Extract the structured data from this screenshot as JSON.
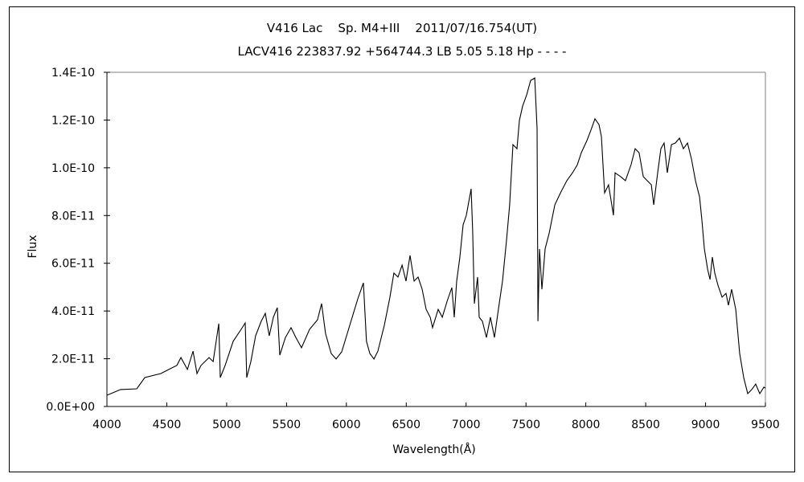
{
  "chart_data": {
    "type": "line",
    "title": "V416 Lac    Sp. M4+III    2011/07/16.754(UT)",
    "subtitle": "LACV416 223837.92 +564744.3 LB 5.05 5.18 Hp - - - -",
    "xlabel": "Wavelength(Å)",
    "ylabel": "Flux",
    "xlim": [
      4000,
      9500
    ],
    "ylim": [
      0,
      1.4e-10
    ],
    "x_ticks": [
      "4000",
      "4500",
      "5000",
      "5500",
      "6000",
      "6500",
      "7000",
      "7500",
      "8000",
      "8500",
      "9000",
      "9500"
    ],
    "y_ticks": [
      "0.0E+00",
      "2.0E-11",
      "4.0E-11",
      "6.0E-11",
      "8.0E-11",
      "1.0E-10",
      "1.2E-10",
      "1.4E-10"
    ],
    "grid": false,
    "line_color": "#000000",
    "series": [
      {
        "x": [
          4000,
          4114,
          4249,
          4316,
          4450,
          4517,
          4584,
          4618,
          4672,
          4719,
          4752,
          4786,
          4853,
          4887,
          4934,
          4947,
          4987,
          5054,
          5121,
          5155,
          5168,
          5202,
          5242,
          5289,
          5323,
          5356,
          5390,
          5423,
          5444,
          5491,
          5538,
          5578,
          5625,
          5692,
          5759,
          5793,
          5826,
          5873,
          5914,
          5961,
          6028,
          6095,
          6142,
          6168,
          6196,
          6230,
          6263,
          6317,
          6364,
          6397,
          6431,
          6465,
          6498,
          6532,
          6566,
          6599,
          6633,
          6666,
          6700,
          6720,
          6767,
          6801,
          6841,
          6881,
          6901,
          6921,
          6948,
          6975,
          7002,
          7042,
          7055,
          7069,
          7096,
          7109,
          7136,
          7170,
          7203,
          7237,
          7270,
          7304,
          7337,
          7364,
          7391,
          7425,
          7445,
          7472,
          7506,
          7539,
          7573,
          7593,
          7600,
          7613,
          7633,
          7660,
          7694,
          7741,
          7788,
          7841,
          7889,
          7929,
          7962,
          8009,
          8043,
          8076,
          8110,
          8130,
          8157,
          8190,
          8231,
          8244,
          8291,
          8331,
          8378,
          8412,
          8445,
          8480,
          8513,
          8547,
          8567,
          8600,
          8627,
          8654,
          8681,
          8715,
          8748,
          8782,
          8815,
          8849,
          8883,
          8916,
          8950,
          8970,
          8990,
          9017,
          9037,
          9057,
          9077,
          9104,
          9138,
          9171,
          9191,
          9218,
          9252,
          9285,
          9319,
          9352,
          9386,
          9419,
          9453,
          9487,
          9500
        ],
        "y": [
          4.7e-12,
          7.1e-12,
          7.4e-12,
          1.21e-11,
          1.38e-11,
          1.55e-11,
          1.72e-11,
          2.05e-11,
          1.55e-11,
          2.32e-11,
          1.38e-11,
          1.72e-11,
          2.05e-11,
          1.88e-11,
          3.47e-11,
          1.21e-11,
          1.72e-11,
          2.73e-11,
          3.23e-11,
          3.5e-11,
          1.21e-11,
          1.88e-11,
          2.96e-11,
          3.57e-11,
          3.9e-11,
          2.96e-11,
          3.74e-11,
          4.14e-11,
          2.15e-11,
          2.89e-11,
          3.3e-11,
          2.89e-11,
          2.46e-11,
          3.23e-11,
          3.63e-11,
          4.31e-11,
          3.06e-11,
          2.22e-11,
          1.99e-11,
          2.29e-11,
          3.4e-11,
          4.51e-11,
          5.18e-11,
          2.73e-11,
          2.22e-11,
          1.99e-11,
          2.32e-11,
          3.4e-11,
          4.58e-11,
          5.59e-11,
          5.42e-11,
          5.92e-11,
          5.25e-11,
          6.33e-11,
          5.25e-11,
          5.42e-11,
          4.91e-11,
          4.07e-11,
          3.74e-11,
          3.3e-11,
          4.07e-11,
          3.74e-11,
          4.41e-11,
          4.98e-11,
          3.74e-11,
          5.25e-11,
          6.26e-11,
          7.61e-11,
          8.01e-11,
          9.12e-11,
          7.34e-11,
          4.31e-11,
          5.42e-11,
          3.74e-11,
          3.57e-11,
          2.89e-11,
          3.74e-11,
          2.89e-11,
          4.07e-11,
          5.25e-11,
          6.93e-11,
          8.45e-11,
          1.097e-10,
          1.08e-10,
          1.198e-10,
          1.258e-10,
          1.306e-10,
          1.366e-10,
          1.376e-10,
          1.164e-10,
          3.57e-11,
          6.6e-11,
          4.91e-11,
          6.6e-11,
          7.27e-11,
          8.45e-11,
          8.95e-11,
          9.46e-11,
          9.79e-11,
          1.013e-10,
          1.063e-10,
          1.114e-10,
          1.158e-10,
          1.205e-10,
          1.181e-10,
          1.131e-10,
          8.95e-11,
          9.29e-11,
          8.01e-11,
          9.79e-11,
          9.63e-11,
          9.46e-11,
          1.013e-10,
          1.08e-10,
          1.063e-10,
          9.63e-11,
          9.46e-11,
          9.29e-11,
          8.45e-11,
          9.79e-11,
          1.08e-10,
          1.104e-10,
          9.79e-11,
          1.097e-10,
          1.104e-10,
          1.124e-10,
          1.08e-10,
          1.104e-10,
          1.036e-10,
          9.46e-11,
          8.78e-11,
          7.77e-11,
          6.6e-11,
          5.75e-11,
          5.32e-11,
          6.26e-11,
          5.59e-11,
          5.08e-11,
          4.58e-11,
          4.74e-11,
          4.24e-11,
          4.91e-11,
          4.07e-11,
          2.22e-11,
          1.21e-11,
          5.4e-12,
          7.1e-12,
          9.4e-12,
          5.4e-12,
          8.1e-12,
          7.7e-12
        ]
      }
    ]
  }
}
